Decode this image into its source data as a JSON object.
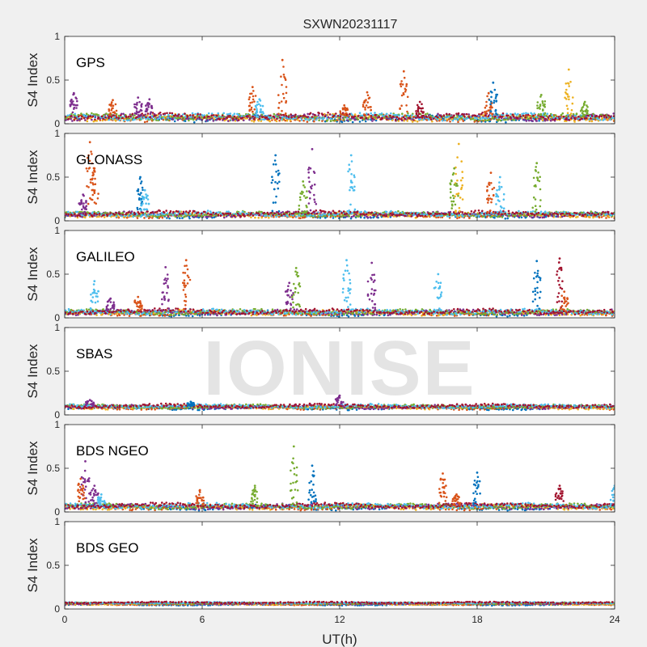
{
  "title": "SXWN20231117",
  "watermark": "IONISE",
  "colors": {
    "background": "#f0f0f0",
    "axes_bg": "#ffffff",
    "axis": "#262626",
    "watermark": "#e4e4e4",
    "series": [
      "#0072bd",
      "#d95319",
      "#edb120",
      "#7e2f8e",
      "#77ac30",
      "#4dbeee",
      "#a2142f"
    ]
  },
  "chart_data": {
    "type": "scatter",
    "title": "SXWN20231117",
    "xlabel": "UT(h)",
    "ylabel": "S4 Index",
    "xlim": [
      0,
      24
    ],
    "ylim": [
      0,
      1
    ],
    "xticks": [
      0,
      6,
      12,
      18,
      24
    ],
    "yticks": [
      0,
      0.5,
      1
    ],
    "panels": [
      {
        "label": "GPS",
        "baseline": 0.08,
        "noise": 0.05,
        "peaks": [
          {
            "x": 0.4,
            "y": 0.35,
            "c": 3
          },
          {
            "x": 2.1,
            "y": 0.27,
            "c": 1
          },
          {
            "x": 3.2,
            "y": 0.3,
            "c": 3
          },
          {
            "x": 3.7,
            "y": 0.28,
            "c": 3
          },
          {
            "x": 8.2,
            "y": 0.42,
            "c": 1
          },
          {
            "x": 8.5,
            "y": 0.28,
            "c": 5
          },
          {
            "x": 9.5,
            "y": 0.73,
            "c": 1
          },
          {
            "x": 12.2,
            "y": 0.21,
            "c": 1
          },
          {
            "x": 13.2,
            "y": 0.36,
            "c": 1
          },
          {
            "x": 14.8,
            "y": 0.6,
            "c": 1
          },
          {
            "x": 15.5,
            "y": 0.25,
            "c": 6
          },
          {
            "x": 18.5,
            "y": 0.35,
            "c": 1
          },
          {
            "x": 18.7,
            "y": 0.47,
            "c": 0
          },
          {
            "x": 20.8,
            "y": 0.33,
            "c": 4
          },
          {
            "x": 22.0,
            "y": 0.62,
            "c": 2
          },
          {
            "x": 22.7,
            "y": 0.25,
            "c": 4
          }
        ]
      },
      {
        "label": "GLONASS",
        "baseline": 0.08,
        "noise": 0.04,
        "peaks": [
          {
            "x": 1.1,
            "y": 0.9,
            "c": 1
          },
          {
            "x": 1.3,
            "y": 0.6,
            "c": 1
          },
          {
            "x": 0.8,
            "y": 0.3,
            "c": 3
          },
          {
            "x": 3.3,
            "y": 0.5,
            "c": 0
          },
          {
            "x": 3.5,
            "y": 0.35,
            "c": 5
          },
          {
            "x": 9.2,
            "y": 0.75,
            "c": 0
          },
          {
            "x": 10.4,
            "y": 0.45,
            "c": 4
          },
          {
            "x": 10.8,
            "y": 0.82,
            "c": 3
          },
          {
            "x": 12.5,
            "y": 0.75,
            "c": 5
          },
          {
            "x": 17.2,
            "y": 0.88,
            "c": 2
          },
          {
            "x": 17.0,
            "y": 0.6,
            "c": 4
          },
          {
            "x": 18.6,
            "y": 0.55,
            "c": 1
          },
          {
            "x": 19.0,
            "y": 0.5,
            "c": 5
          },
          {
            "x": 20.6,
            "y": 0.66,
            "c": 4
          }
        ]
      },
      {
        "label": "GALILEO",
        "baseline": 0.07,
        "noise": 0.04,
        "peaks": [
          {
            "x": 1.3,
            "y": 0.42,
            "c": 5
          },
          {
            "x": 2.0,
            "y": 0.22,
            "c": 3
          },
          {
            "x": 3.2,
            "y": 0.24,
            "c": 1
          },
          {
            "x": 4.4,
            "y": 0.58,
            "c": 3
          },
          {
            "x": 5.3,
            "y": 0.66,
            "c": 1
          },
          {
            "x": 9.8,
            "y": 0.4,
            "c": 3
          },
          {
            "x": 10.1,
            "y": 0.57,
            "c": 4
          },
          {
            "x": 12.3,
            "y": 0.66,
            "c": 5
          },
          {
            "x": 13.4,
            "y": 0.63,
            "c": 3
          },
          {
            "x": 16.3,
            "y": 0.5,
            "c": 5
          },
          {
            "x": 20.6,
            "y": 0.65,
            "c": 0
          },
          {
            "x": 21.6,
            "y": 0.68,
            "c": 6
          },
          {
            "x": 21.8,
            "y": 0.3,
            "c": 1
          }
        ]
      },
      {
        "label": "SBAS",
        "baseline": 0.1,
        "noise": 0.03,
        "peaks": [
          {
            "x": 1.1,
            "y": 0.17,
            "c": 3
          },
          {
            "x": 5.5,
            "y": 0.15,
            "c": 0
          },
          {
            "x": 12.0,
            "y": 0.22,
            "c": 3
          }
        ]
      },
      {
        "label": "BDS NGEO",
        "baseline": 0.07,
        "noise": 0.04,
        "peaks": [
          {
            "x": 0.9,
            "y": 0.58,
            "c": 3
          },
          {
            "x": 0.7,
            "y": 0.38,
            "c": 1
          },
          {
            "x": 1.3,
            "y": 0.3,
            "c": 3
          },
          {
            "x": 1.6,
            "y": 0.2,
            "c": 5
          },
          {
            "x": 5.9,
            "y": 0.25,
            "c": 1
          },
          {
            "x": 8.3,
            "y": 0.3,
            "c": 4
          },
          {
            "x": 10.0,
            "y": 0.75,
            "c": 4
          },
          {
            "x": 10.8,
            "y": 0.53,
            "c": 0
          },
          {
            "x": 16.5,
            "y": 0.44,
            "c": 1
          },
          {
            "x": 17.1,
            "y": 0.2,
            "c": 1
          },
          {
            "x": 18.0,
            "y": 0.45,
            "c": 0
          },
          {
            "x": 21.6,
            "y": 0.3,
            "c": 6
          },
          {
            "x": 24.0,
            "y": 0.3,
            "c": 5
          }
        ]
      },
      {
        "label": "BDS GEO",
        "baseline": 0.07,
        "noise": 0.012,
        "peaks": []
      }
    ]
  }
}
